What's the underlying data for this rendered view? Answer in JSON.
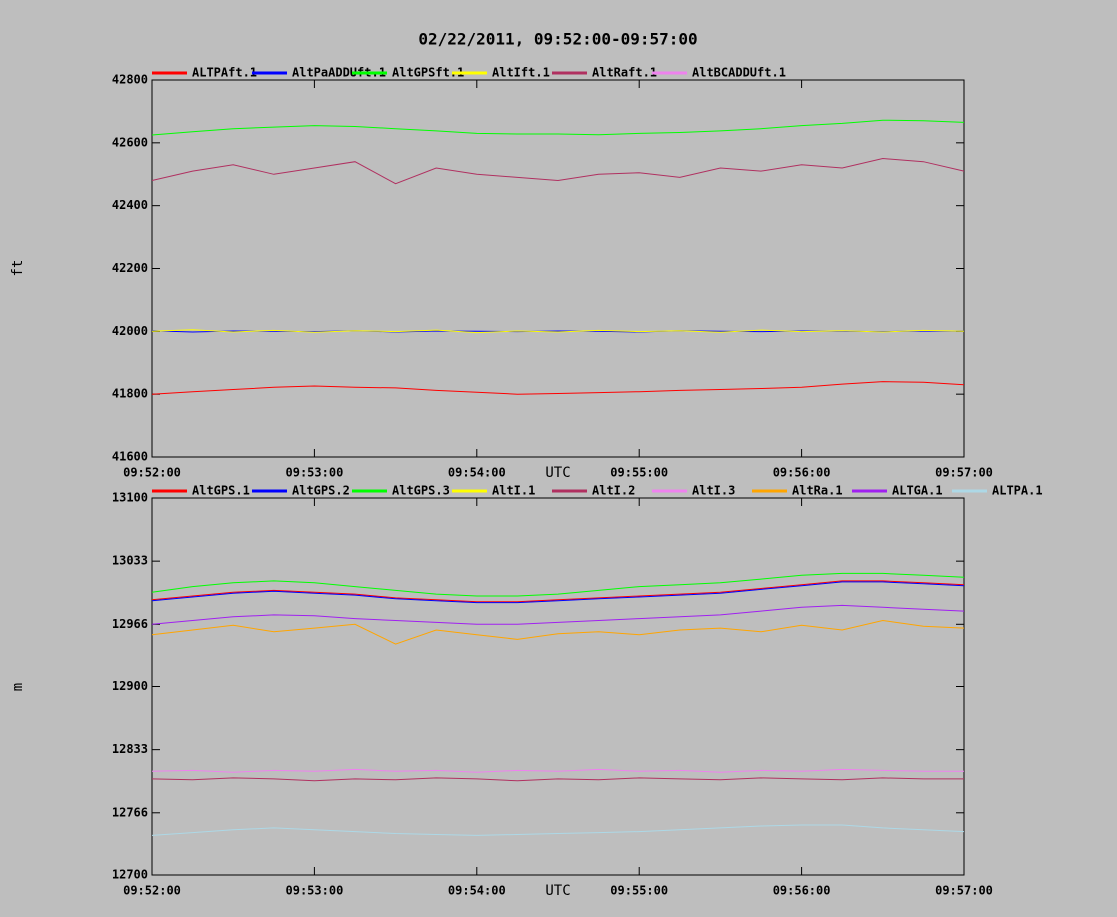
{
  "chart_data": [
    {
      "type": "line",
      "title": "02/22/2011, 09:52:00-09:57:00",
      "xlabel": "UTC",
      "ylabel": "ft",
      "x": [
        "09:52:00",
        "09:52:15",
        "09:52:30",
        "09:52:45",
        "09:53:00",
        "09:53:15",
        "09:53:30",
        "09:53:45",
        "09:54:00",
        "09:54:15",
        "09:54:30",
        "09:54:45",
        "09:55:00",
        "09:55:15",
        "09:55:30",
        "09:55:45",
        "09:56:00",
        "09:56:15",
        "09:56:30",
        "09:56:45",
        "09:57:00"
      ],
      "xlim": [
        "09:52:00",
        "09:57:00"
      ],
      "xticks": [
        "09:52:00",
        "09:53:00",
        "09:54:00",
        "09:55:00",
        "09:56:00",
        "09:57:00"
      ],
      "ylim": [
        41600,
        42800
      ],
      "yticks": [
        41600,
        41800,
        42000,
        42200,
        42400,
        42600,
        42800
      ],
      "series": [
        {
          "name": "ALTPAft.1",
          "color": "#ff0000",
          "values": [
            41800,
            41808,
            41815,
            41822,
            41826,
            41822,
            41820,
            41812,
            41806,
            41800,
            41802,
            41805,
            41808,
            41812,
            41815,
            41818,
            41822,
            41832,
            41840,
            41838,
            41830
          ]
        },
        {
          "name": "AltPaADDUft.1",
          "color": "#0000ff",
          "values": [
            42002,
            41998,
            42001,
            42000,
            41999,
            42002,
            41998,
            42001,
            42000,
            41999,
            42001,
            42000,
            41998,
            42002,
            42000,
            41999,
            42001,
            42000,
            41999,
            42001,
            42000
          ]
        },
        {
          "name": "AltGPSft.1",
          "color": "#00ff00",
          "values": [
            42625,
            42635,
            42645,
            42650,
            42655,
            42652,
            42645,
            42638,
            42630,
            42628,
            42628,
            42626,
            42630,
            42633,
            42638,
            42645,
            42655,
            42662,
            42672,
            42670,
            42665
          ]
        },
        {
          "name": "AltIft.1",
          "color": "#ffff00",
          "values": [
            42000,
            42005,
            41998,
            42003,
            41997,
            42002,
            41999,
            42004,
            41996,
            42001,
            41998,
            42003,
            41999,
            42002,
            41997,
            42004,
            41999,
            42002,
            41998,
            42003,
            42000
          ]
        },
        {
          "name": "AltRaft.1",
          "color": "#b03060",
          "values": [
            42480,
            42510,
            42530,
            42500,
            42520,
            42540,
            42470,
            42520,
            42500,
            42490,
            42480,
            42500,
            42505,
            42490,
            42520,
            42510,
            42530,
            42520,
            42550,
            42540,
            42510
          ]
        },
        {
          "name": "AltBCADDUft.1",
          "color": "#ee82ee",
          "values": [
            null,
            null,
            null,
            null,
            null,
            null,
            null,
            null,
            null,
            null,
            null,
            null,
            null,
            null,
            null,
            null,
            null,
            null,
            null,
            null,
            null
          ]
        }
      ]
    },
    {
      "type": "line",
      "xlabel": "UTC",
      "ylabel": "m",
      "x": [
        "09:52:00",
        "09:52:15",
        "09:52:30",
        "09:52:45",
        "09:53:00",
        "09:53:15",
        "09:53:30",
        "09:53:45",
        "09:54:00",
        "09:54:15",
        "09:54:30",
        "09:54:45",
        "09:55:00",
        "09:55:15",
        "09:55:30",
        "09:55:45",
        "09:56:00",
        "09:56:15",
        "09:56:30",
        "09:56:45",
        "09:57:00"
      ],
      "xlim": [
        "09:52:00",
        "09:57:00"
      ],
      "xticks": [
        "09:52:00",
        "09:53:00",
        "09:54:00",
        "09:55:00",
        "09:56:00",
        "09:57:00"
      ],
      "ylim": [
        12700,
        13100
      ],
      "yticks": [
        12700,
        12766,
        12833,
        12900,
        12966,
        13033,
        13100
      ],
      "series": [
        {
          "name": "AltGPS.1",
          "color": "#ff0000",
          "values": [
            12992,
            12996,
            13000,
            13002,
            13000,
            12998,
            12994,
            12992,
            12990,
            12990,
            12992,
            12994,
            12996,
            12998,
            13000,
            13004,
            13008,
            13012,
            13012,
            13010,
            13008
          ]
        },
        {
          "name": "AltGPS.2",
          "color": "#0000ff",
          "values": [
            12991,
            12995,
            12999,
            13001,
            12999,
            12997,
            12993,
            12991,
            12989,
            12989,
            12991,
            12993,
            12995,
            12997,
            12999,
            13003,
            13007,
            13011,
            13011,
            13009,
            13007
          ]
        },
        {
          "name": "AltGPS.3",
          "color": "#00ff00",
          "values": [
            13000,
            13006,
            13010,
            13012,
            13010,
            13006,
            13002,
            12998,
            12996,
            12996,
            12998,
            13002,
            13006,
            13008,
            13010,
            13014,
            13018,
            13020,
            13020,
            13018,
            13016
          ]
        },
        {
          "name": "AltI.1",
          "color": "#ffff00",
          "values": [
            null,
            null,
            null,
            null,
            null,
            null,
            null,
            null,
            null,
            null,
            null,
            null,
            null,
            null,
            null,
            null,
            null,
            null,
            null,
            null,
            null
          ]
        },
        {
          "name": "AltI.2",
          "color": "#b03060",
          "values": [
            12802,
            12801,
            12803,
            12802,
            12800,
            12802,
            12801,
            12803,
            12802,
            12800,
            12802,
            12801,
            12803,
            12802,
            12801,
            12803,
            12802,
            12801,
            12803,
            12802,
            12802
          ]
        },
        {
          "name": "AltI.3",
          "color": "#ee82ee",
          "values": [
            12810,
            12811,
            12809,
            12811,
            12810,
            12812,
            12810,
            12811,
            12809,
            12811,
            12810,
            12812,
            12810,
            12811,
            12809,
            12811,
            12810,
            12812,
            12811,
            12810,
            12810
          ]
        },
        {
          "name": "AltRa.1",
          "color": "#ffa500",
          "values": [
            12955,
            12960,
            12965,
            12958,
            12962,
            12966,
            12945,
            12960,
            12955,
            12950,
            12956,
            12958,
            12955,
            12960,
            12962,
            12958,
            12965,
            12960,
            12970,
            12964,
            12962
          ]
        },
        {
          "name": "ALTGA.1",
          "color": "#a020f0",
          "values": [
            12966,
            12970,
            12974,
            12976,
            12975,
            12972,
            12970,
            12968,
            12966,
            12966,
            12968,
            12970,
            12972,
            12974,
            12976,
            12980,
            12984,
            12986,
            12984,
            12982,
            12980
          ]
        },
        {
          "name": "ALTPA.1",
          "color": "#add8e6",
          "values": [
            12742,
            12745,
            12748,
            12750,
            12748,
            12746,
            12744,
            12743,
            12742,
            12743,
            12744,
            12745,
            12746,
            12748,
            12750,
            12752,
            12753,
            12753,
            12750,
            12748,
            12746
          ]
        }
      ]
    }
  ]
}
